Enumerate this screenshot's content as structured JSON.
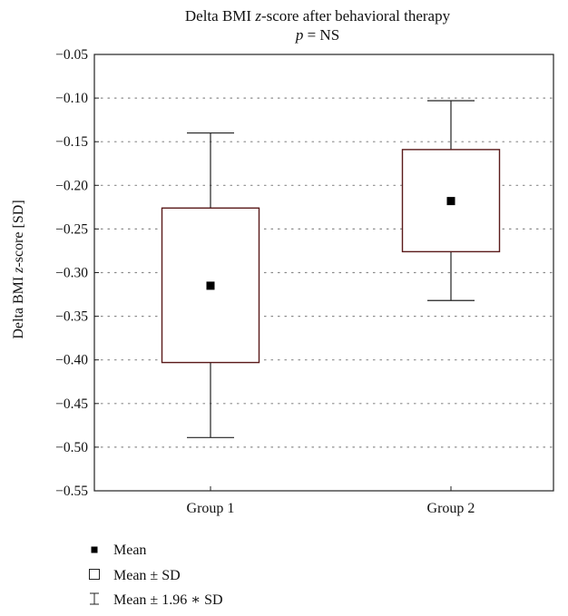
{
  "chart_data": {
    "type": "box",
    "title_line1_prefix": "Delta BMI ",
    "title_line1_italic": "z",
    "title_line1_suffix": "-score after behavioral therapy",
    "title_line2_italic": "p",
    "title_line2_suffix": " = NS",
    "ylabel_prefix": "Delta BMI ",
    "ylabel_italic": "z",
    "ylabel_suffix": "-score [SD]",
    "ylim": [
      -0.55,
      -0.05
    ],
    "yticks": [
      "-0.05",
      "-0.10",
      "-0.15",
      "-0.20",
      "-0.25",
      "-0.30",
      "-0.35",
      "-0.40",
      "-0.45",
      "-0.50",
      "-0.55"
    ],
    "ytick_values": [
      -0.05,
      -0.1,
      -0.15,
      -0.2,
      -0.25,
      -0.3,
      -0.35,
      -0.4,
      -0.45,
      -0.5,
      -0.55
    ],
    "grid": "horizontal dotted",
    "categories": [
      "Group 1",
      "Group 2"
    ],
    "groups": [
      {
        "category": "Group 1",
        "mean": -0.315,
        "sd_low": -0.403,
        "sd_high": -0.226,
        "ci_low": -0.489,
        "ci_high": -0.14
      },
      {
        "category": "Group 2",
        "mean": -0.218,
        "sd_low": -0.276,
        "sd_high": -0.159,
        "ci_low": -0.332,
        "ci_high": -0.103
      }
    ],
    "colors": {
      "box_stroke": "#5a1a1a",
      "axis": "#222222",
      "grid": "#8a8a8a",
      "mean": "#000000"
    }
  },
  "legend": {
    "items": [
      {
        "symbol": "filled-square",
        "label": "Mean"
      },
      {
        "symbol": "open-square",
        "label": "Mean ± SD"
      },
      {
        "symbol": "whisker",
        "label": "Mean ± 1.96 ∗ SD"
      }
    ]
  }
}
